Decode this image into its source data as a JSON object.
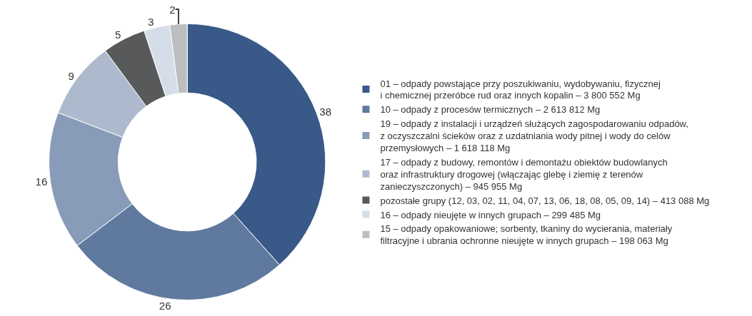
{
  "chart_data": {
    "type": "donut",
    "categories": [
      "01 – odpady powstające przy poszukiwaniu, wydobywaniu, fizycznej\ni chemicznej przeróbce rud oraz innych kopalin – 3 800 552 Mg",
      "10 – odpady z procesów termicznych – 2 613 812 Mg",
      "19 – odpady z instalacji i urządzeń służących zagospodarowaniu odpadów,\nz oczyszczalni ścieków oraz z uzdatniania wody pitnej i wody do celów\nprzemysłowych – 1 618 118 Mg",
      "17 – odpady z budowy, remontów i demontażu obiektów budowlanych\noraz infrastruktury drogowej (włączając glebę i ziemię z terenów\nzanieczyszczonych) – 945 955 Mg",
      "pozostałe grupy (12, 03, 02, 11, 04, 07, 13, 06, 18, 08, 05, 09, 14) – 413 088 Mg",
      "16 – odpady nieujęte w innych grupach – 299 485 Mg",
      "15 – odpady opakowaniowe; sorbenty, tkaniny do wycierania, materiały\nfiltracyjne i ubrania ochronne nieujęte w innych grupach – 198 063 Mg"
    ],
    "values": [
      38,
      26,
      16,
      9,
      5,
      3,
      2
    ],
    "colors": [
      "#395a88",
      "#60799f",
      "#889bb8",
      "#adbace",
      "#58595b",
      "#d5dde8",
      "#bcbec0"
    ],
    "data_labels": true,
    "legend": "right"
  }
}
